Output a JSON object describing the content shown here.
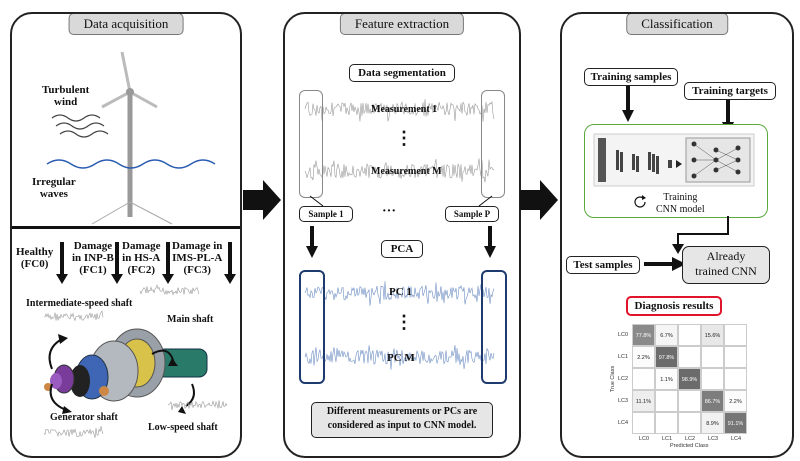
{
  "panels": {
    "acquisition": {
      "title": "Data acquisition",
      "turbulent_wind": [
        "Turbulent",
        "wind"
      ],
      "irregular_waves": [
        "Irregular",
        "waves"
      ],
      "fault_classes": [
        {
          "line1": "Healthy",
          "line2": "(FC0)",
          "line3": ""
        },
        {
          "line1": "Damage",
          "line2": "in INP-B",
          "line3": "(FC1)"
        },
        {
          "line1": "Damage",
          "line2": "in HS-A",
          "line3": "(FC2)"
        },
        {
          "line1": "Damage in",
          "line2": "IMS-PL-A",
          "line3": "(FC3)"
        }
      ],
      "intermediate_shaft": "Intermediate-speed shaft",
      "main_shaft": "Main shaft",
      "generator_shaft": "Generator shaft",
      "low_speed_shaft": "Low-speed shaft"
    },
    "feature": {
      "title": "Feature extraction",
      "data_segmentation": "Data segmentation",
      "measurement_1": "Measurement 1",
      "measurement_m": "Measurement M",
      "vdots": "⋮",
      "sample_1": "Sample 1",
      "sample_p": "Sample P",
      "hdots": "···",
      "pca": "PCA",
      "pc_1": "PC 1",
      "pc_m": "PC M",
      "note": [
        "Different measurements or PCs are",
        "considered as input to CNN model."
      ]
    },
    "classification": {
      "title": "Classification",
      "training_samples": "Training samples",
      "training_targets": "Training targets",
      "training_cnn": [
        "Training",
        "CNN model"
      ],
      "test_samples": "Test samples",
      "already_trained": [
        "Already",
        "trained CNN"
      ],
      "diagnosis_results": "Diagnosis results",
      "confusion": {
        "classes": [
          "LC0",
          "LC1",
          "LC2",
          "LC3",
          "LC4"
        ],
        "xlabel": "Predicted Class",
        "ylabel": "True Class",
        "rows": [
          [
            "77.8%",
            "6.7%",
            "",
            "15.6%",
            ""
          ],
          [
            "2.2%",
            "97.8%",
            "",
            "",
            ""
          ],
          [
            "",
            "1.1%",
            "98.9%",
            "",
            ""
          ],
          [
            "11.1%",
            "",
            "",
            "86.7%",
            "2.2%"
          ],
          [
            "",
            "",
            "",
            "8.9%",
            "91.1%"
          ]
        ],
        "values": [
          [
            77.8,
            6.7,
            0,
            15.6,
            0
          ],
          [
            2.2,
            97.8,
            0,
            0,
            0
          ],
          [
            0,
            1.1,
            98.9,
            0,
            0
          ],
          [
            11.1,
            0,
            0,
            86.7,
            2.2
          ],
          [
            0,
            0,
            0,
            8.9,
            91.1
          ]
        ]
      }
    }
  },
  "colors": {
    "panel_border": "#222222",
    "title_fill": "#d9d9d9",
    "signal_gray": "#9a9a9a",
    "signal_blue": "#6f8fc4",
    "pc_box": "#1f3a6e",
    "wave_blue": "#2a5db0",
    "diagnosis_border": "#e0142a",
    "cnn_border": "#5aa83c"
  }
}
